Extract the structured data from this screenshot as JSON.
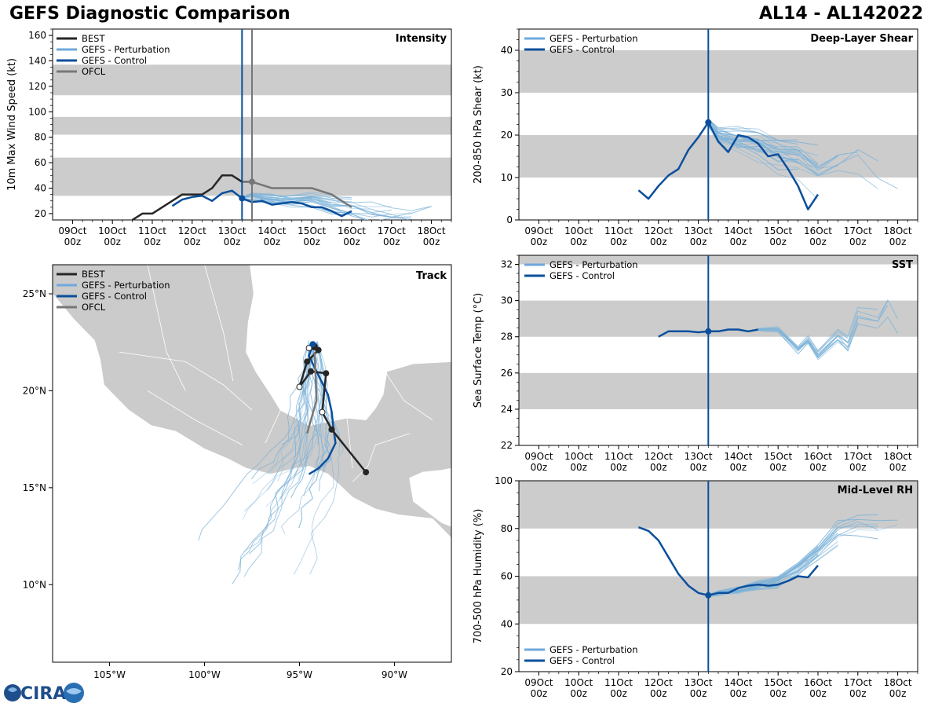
{
  "header": {
    "title": "GEFS Diagnostic Comparison",
    "storm": "AL14 - AL142022"
  },
  "logo": {
    "text": "CIRA"
  },
  "colors": {
    "best": "#262626",
    "pert": "#7cb2d8",
    "pert_legend": "#6fa8dc",
    "control": "#0b4f9c",
    "ofcl": "#777777",
    "band": "#cccccc",
    "land": "#cbcbcb",
    "init_line": "#0b4f9c",
    "ofcl_line": "#777777"
  },
  "time_axis": {
    "labels": [
      "09Oct\n00z",
      "10Oct\n00z",
      "11Oct\n00z",
      "12Oct\n00z",
      "13Oct\n00z",
      "14Oct\n00z",
      "15Oct\n00z",
      "16Oct\n00z",
      "17Oct\n00z",
      "18Oct\n00z"
    ],
    "range_days": [
      8.5,
      18.5
    ],
    "init_time": 13.25,
    "ofcl_time": 13.5
  },
  "panels": {
    "intensity": {
      "title": "Intensity",
      "ylabel": "10m Max Wind Speed (kt)",
      "ylim": [
        15,
        165
      ],
      "yticks": [
        20,
        40,
        60,
        80,
        100,
        120,
        140,
        160
      ],
      "bands": [
        [
          34,
          64
        ],
        [
          82,
          96
        ],
        [
          113,
          137
        ]
      ],
      "legend": [
        "BEST",
        "GEFS - Perturbation",
        "GEFS - Control",
        "OFCL"
      ]
    },
    "shear": {
      "title": "Deep-Layer Shear",
      "ylabel": "200-850 hPa Shear (kt)",
      "ylim": [
        0,
        45
      ],
      "yticks": [
        0,
        10,
        20,
        30,
        40
      ],
      "bands": [
        [
          10,
          20
        ],
        [
          30,
          40
        ]
      ],
      "legend": [
        "GEFS - Perturbation",
        "GEFS - Control"
      ]
    },
    "sst": {
      "title": "SST",
      "ylabel": "Sea Surface Temp (°C)",
      "ylim": [
        22,
        32.5
      ],
      "yticks": [
        22,
        24,
        26,
        28,
        30,
        32
      ],
      "bands": [
        [
          24,
          26
        ],
        [
          28,
          30
        ],
        [
          32,
          32.5
        ]
      ],
      "legend": [
        "GEFS - Perturbation",
        "GEFS - Control"
      ]
    },
    "rh": {
      "title": "Mid-Level RH",
      "ylabel": "700-500 hPa Humidity (%)",
      "ylim": [
        20,
        100
      ],
      "yticks": [
        20,
        40,
        60,
        80,
        100
      ],
      "bands": [
        [
          40,
          60
        ],
        [
          80,
          100
        ]
      ],
      "legend": [
        "GEFS - Perturbation",
        "GEFS - Control"
      ]
    },
    "track": {
      "title": "Track",
      "xticks": [
        "105°W",
        "100°W",
        "95°W",
        "90°W"
      ],
      "xtick_values": [
        -105,
        -100,
        -95,
        -90
      ],
      "yticks": [
        "25°N",
        "20°N",
        "15°N",
        "10°N"
      ],
      "ytick_values": [
        25,
        20,
        15,
        10
      ],
      "lon_range": [
        -108,
        -87
      ],
      "lat_range": [
        6,
        26.5
      ],
      "legend": [
        "BEST",
        "GEFS - Perturbation",
        "GEFS - Control",
        "OFCL"
      ]
    }
  },
  "chart_data": [
    {
      "type": "line",
      "title": "Intensity",
      "ylabel": "10m Max Wind Speed (kt)",
      "ylim": [
        15,
        165
      ],
      "series": [
        {
          "name": "BEST",
          "x": [
            10.5,
            10.75,
            11.0,
            11.75,
            12.0,
            12.25,
            12.5,
            12.75,
            13.0,
            13.25,
            13.5
          ],
          "y": [
            15,
            20,
            20,
            35,
            35,
            35,
            40,
            50,
            50,
            45,
            45
          ]
        },
        {
          "name": "GEFS - Control",
          "x": [
            11.5,
            11.75,
            12.0,
            12.25,
            12.5,
            12.75,
            13.0,
            13.25,
            13.5,
            13.75,
            14.0,
            14.25,
            14.5,
            14.75,
            15.0,
            15.25,
            15.5,
            15.75,
            16.0
          ],
          "y": [
            26,
            31,
            33,
            34,
            30,
            36,
            38,
            32,
            29,
            30,
            27,
            28,
            29,
            28,
            25,
            25,
            22,
            18,
            22
          ]
        },
        {
          "name": "OFCL",
          "x": [
            13.25,
            13.5,
            14.0,
            14.5,
            15.0,
            15.5,
            16.0
          ],
          "y": [
            45,
            45,
            40,
            40,
            40,
            35,
            25
          ]
        },
        {
          "name": "GEFS - Perturbation",
          "x": [
            13.25,
            13.5,
            14.0,
            14.5,
            15.0,
            15.5,
            16.0,
            16.5,
            17.0,
            17.5,
            18.0,
            18.5
          ],
          "y": [
            32,
            33,
            31,
            30,
            31,
            28,
            25,
            22,
            21,
            20,
            22,
            27
          ]
        }
      ]
    },
    {
      "type": "line",
      "title": "Deep-Layer Shear",
      "ylabel": "200-850 hPa Shear (kt)",
      "ylim": [
        0,
        45
      ],
      "series": [
        {
          "name": "GEFS - Control",
          "x": [
            11.5,
            11.75,
            12.0,
            12.25,
            12.5,
            12.75,
            13.0,
            13.25,
            13.5,
            13.75,
            14.0,
            14.25,
            14.5,
            14.75,
            15.0,
            15.25,
            15.5,
            15.75,
            16.0
          ],
          "y": [
            7,
            5,
            8,
            10.5,
            12,
            16.5,
            19.5,
            23,
            18.5,
            16,
            20,
            19.5,
            18,
            15,
            15.5,
            12,
            8,
            2.5,
            6
          ]
        },
        {
          "name": "GEFS - Perturbation",
          "x": [
            13.25,
            13.5,
            14.0,
            14.5,
            15.0,
            15.5,
            16.0,
            16.5,
            17.0,
            17.5,
            18.0,
            18.5
          ],
          "y": [
            23,
            20,
            19,
            18,
            16,
            15,
            12,
            14,
            16,
            11,
            10,
            5
          ]
        }
      ]
    },
    {
      "type": "line",
      "title": "SST",
      "ylabel": "Sea Surface Temp (°C)",
      "ylim": [
        22,
        32.5
      ],
      "series": [
        {
          "name": "GEFS - Control",
          "x": [
            12.0,
            12.25,
            12.5,
            12.75,
            13.0,
            13.25,
            13.5,
            13.75,
            14.0,
            14.25,
            14.5
          ],
          "y": [
            28.0,
            28.3,
            28.3,
            28.3,
            28.25,
            28.3,
            28.3,
            28.4,
            28.4,
            28.3,
            28.4
          ]
        },
        {
          "name": "GEFS - Perturbation",
          "x": [
            14.5,
            15.0,
            15.5,
            15.75,
            16.0,
            16.5,
            16.75,
            17.0,
            17.5,
            17.75,
            18.0,
            18.5
          ],
          "y": [
            28.4,
            28.4,
            27.3,
            27.8,
            27.0,
            28.0,
            27.5,
            29.0,
            28.7,
            29.6,
            28.7,
            28.5
          ]
        }
      ]
    },
    {
      "type": "line",
      "title": "Mid-Level RH",
      "ylabel": "700-500 hPa Humidity (%)",
      "ylim": [
        20,
        100
      ],
      "series": [
        {
          "name": "GEFS - Control",
          "x": [
            11.5,
            11.75,
            12.0,
            12.25,
            12.5,
            12.75,
            13.0,
            13.25,
            13.5,
            13.75,
            14.0,
            14.25,
            14.5,
            14.75,
            15.0,
            15.25,
            15.5,
            15.75,
            16.0
          ],
          "y": [
            80.5,
            79,
            75,
            68,
            61,
            56,
            53,
            52,
            53,
            53,
            55,
            56,
            56.5,
            56,
            56.5,
            58,
            60,
            59.5,
            64.5
          ]
        },
        {
          "name": "GEFS - Perturbation",
          "x": [
            13.25,
            13.5,
            14.0,
            14.5,
            15.0,
            15.5,
            16.0,
            16.5,
            17.0,
            17.5,
            18.0,
            18.5
          ],
          "y": [
            52,
            53,
            54,
            56,
            58,
            63,
            70,
            78,
            80,
            79,
            79,
            76
          ]
        }
      ]
    },
    {
      "type": "scatter",
      "title": "Track",
      "series": [
        {
          "name": "BEST",
          "lon": [
            -91.5,
            -93.3,
            -93.8,
            -93.6,
            -94.4,
            -95.0,
            -94.6,
            -94.0,
            -94.5,
            -94.2
          ],
          "lat": [
            15.8,
            18.0,
            18.9,
            20.9,
            21.0,
            20.2,
            21.5,
            22.1,
            22.2,
            22.3
          ]
        },
        {
          "name": "GEFS - Control",
          "lon": [
            -94.3,
            -94.5,
            -94.1,
            -93.9,
            -93.5,
            -93.3,
            -93.2,
            -93.1,
            -93.5,
            -94.0,
            -94.5
          ],
          "lat": [
            22.4,
            21.8,
            21.0,
            20.6,
            19.8,
            18.9,
            18.0,
            17.3,
            16.5,
            16.0,
            15.7
          ]
        },
        {
          "name": "OFCL",
          "lon": [
            -94.2,
            -94.1,
            -94.6
          ],
          "lat": [
            22.0,
            19.5,
            17.8
          ]
        }
      ]
    }
  ]
}
